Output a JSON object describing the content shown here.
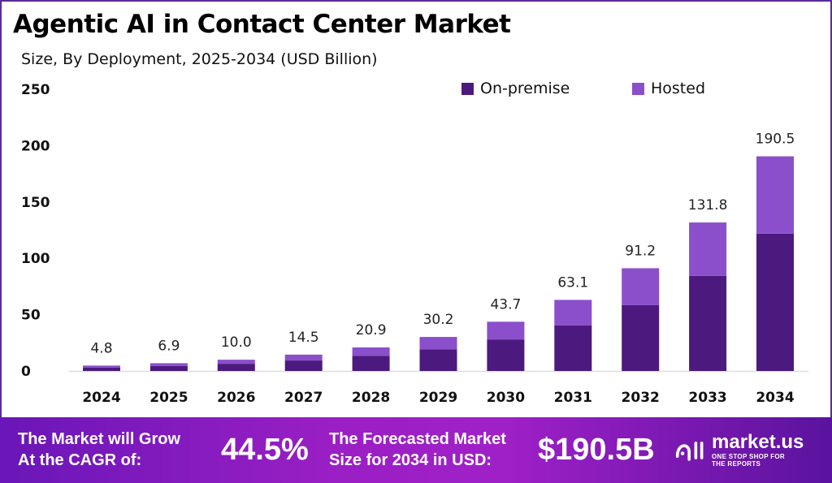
{
  "title": "Agentic AI in Contact Center Market",
  "subtitle": "Size, By Deployment, 2025-2034 (USD Billion)",
  "colors": {
    "on_premise": "#4c1a7e",
    "hosted": "#8b4fcb",
    "banner": "#9a1fc4"
  },
  "chart_data": {
    "type": "bar",
    "stacked": true,
    "title": "Agentic AI in Contact Center Market",
    "subtitle": "Size, By Deployment, 2025-2034 (USD Billion)",
    "xlabel": "",
    "ylabel": "",
    "categories": [
      "2024",
      "2025",
      "2026",
      "2027",
      "2028",
      "2029",
      "2030",
      "2031",
      "2032",
      "2033",
      "2034"
    ],
    "series": [
      {
        "name": "On-premise",
        "values": [
          3.1,
          4.4,
          6.4,
          9.3,
          13.4,
          19.3,
          28.0,
          40.4,
          58.4,
          84.4,
          121.9
        ]
      },
      {
        "name": "Hosted",
        "values": [
          1.7,
          2.5,
          3.6,
          5.2,
          7.5,
          10.9,
          15.7,
          22.7,
          32.8,
          47.4,
          68.6
        ]
      }
    ],
    "totals": [
      "4.8",
      "6.9",
      "10.0",
      "14.5",
      "20.9",
      "30.2",
      "43.7",
      "63.1",
      "91.2",
      "131.8",
      "190.5"
    ],
    "ylim": [
      0,
      250
    ],
    "yticks": [
      "0",
      "50",
      "100",
      "150",
      "200",
      "250"
    ],
    "grid": false,
    "legend": "top-right"
  },
  "banner": {
    "cagr_label_line1": "The Market will Grow",
    "cagr_label_line2": "At the CAGR of:",
    "cagr_value": "44.5%",
    "forecast_label_line1": "The Forecasted Market",
    "forecast_label_line2": "Size for 2034 in USD:",
    "forecast_value": "$190.5B",
    "logo_text": "market.us",
    "logo_tagline": "ONE STOP SHOP FOR THE REPORTS"
  }
}
